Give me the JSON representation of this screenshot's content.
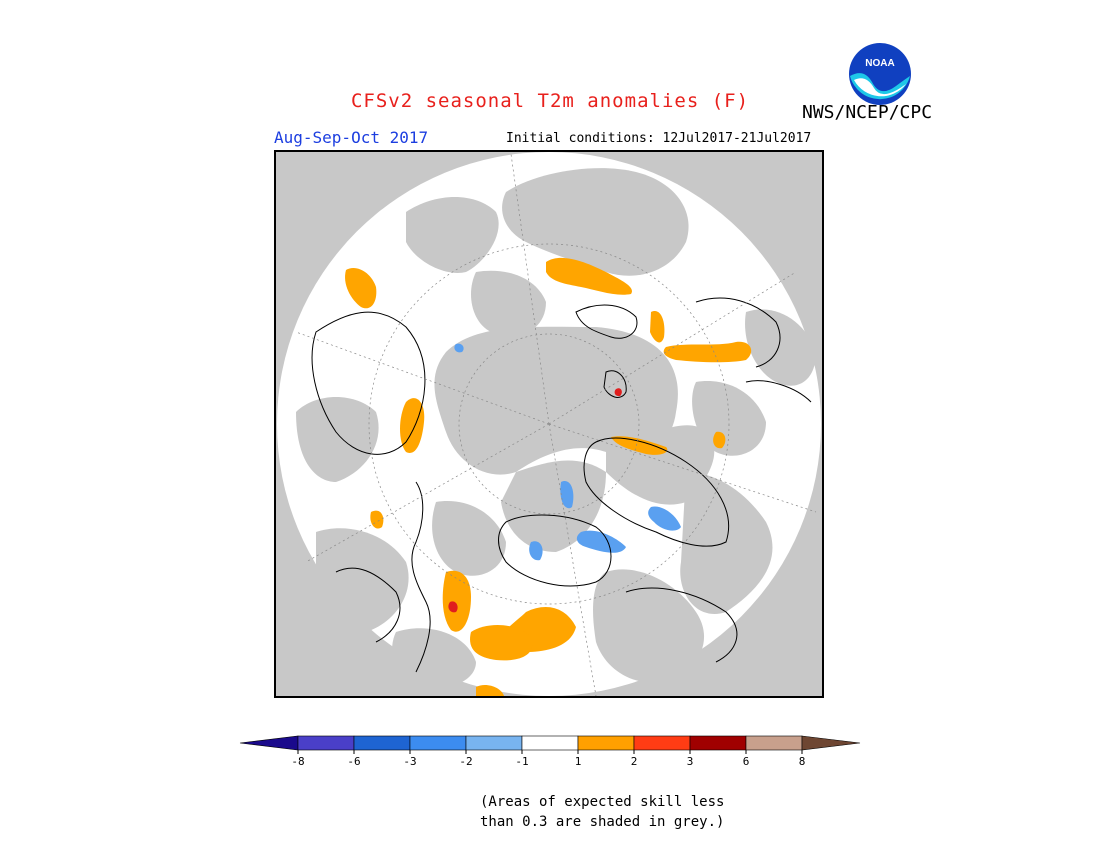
{
  "title": "CFSv2 seasonal T2m anomalies (F)",
  "organization": "NWS/NCEP/CPC",
  "logo_text": "NOAA",
  "season": "Aug-Sep-Oct 2017",
  "initial_conditions": "Initial conditions: 12Jul2017-21Jul2017",
  "note_line1": "(Areas of expected skill less",
  "note_line2": "than 0.3 are shaded in grey.)",
  "colors": {
    "title": "#e8201c",
    "season": "#1c3ee0",
    "no_skill": "#c8c8c8",
    "neutral": "#ffffff",
    "warm1": "#ffa500",
    "cool1": "#5aa0f0",
    "warm3": "#e01e1e"
  },
  "legend": {
    "bins": [
      {
        "range": "< -8",
        "color": "#1a0a8c"
      },
      {
        "range": "-8 to -6",
        "color": "#4a3fc8"
      },
      {
        "range": "-6 to -3",
        "color": "#1e64d2"
      },
      {
        "range": "-3 to -2",
        "color": "#3c8cf0"
      },
      {
        "range": "-2 to -1",
        "color": "#78b4f0"
      },
      {
        "range": "-1 to 1",
        "color": "#ffffff"
      },
      {
        "range": "1 to 2",
        "color": "#ffa000"
      },
      {
        "range": "2 to 3",
        "color": "#ff3c14"
      },
      {
        "range": "3 to 6",
        "color": "#a00000"
      },
      {
        "range": "6 to 8",
        "color": "#c8a08c"
      },
      {
        "range": "> 8",
        "color": "#6e4632"
      }
    ],
    "ticks": [
      "-8",
      "-6",
      "-3",
      "-2",
      "-1",
      "1",
      "2",
      "3",
      "6",
      "8"
    ]
  }
}
